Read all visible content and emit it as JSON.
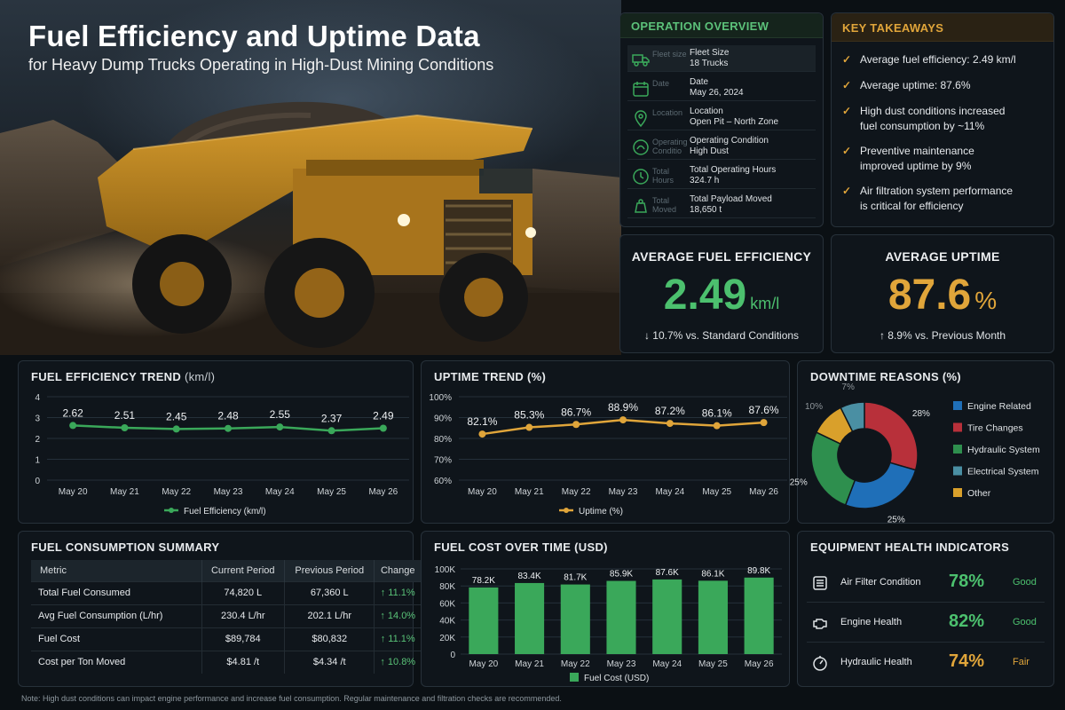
{
  "header": {
    "title": "Fuel Efficiency and Uptime Data",
    "subtitle": "for Heavy Dump Trucks Operating in High-Dust Mining Conditions"
  },
  "colors": {
    "green": "#3aa85a",
    "amber": "#e0a53a",
    "engine": "#1f6fb8",
    "tire": "#b8303a",
    "hydraulic": "#2e8f4e",
    "electrical": "#4a8fa3",
    "other": "#d9a02b"
  },
  "overview": {
    "title": "OPERATION OVERVIEW",
    "rows": [
      {
        "icon": "truck-icon",
        "faint": "Fleet size",
        "label": "Fleet Size",
        "value": "18 Trucks"
      },
      {
        "icon": "calendar-icon",
        "faint": "Date",
        "label": "Date",
        "value": "May 26, 2024"
      },
      {
        "icon": "location-pin-icon",
        "faint": "Location",
        "label": "Location",
        "value": "Open Pit – North Zone"
      },
      {
        "icon": "dust-gauge-icon",
        "faint": "Operating Conditio",
        "label": "Operating Condition",
        "value": "High Dust"
      },
      {
        "icon": "clock-icon",
        "faint": "Total Hours",
        "label": "Total Operating Hours",
        "value": "324.7 h"
      },
      {
        "icon": "weight-icon",
        "faint": "Total Moved",
        "label": "Total Payload Moved",
        "value": "18,650 t"
      }
    ]
  },
  "takeaways": {
    "title": "KEY TAKEAWAYS",
    "items": [
      {
        "lines": [
          "Average fuel efficiency: 2.49 km/l"
        ]
      },
      {
        "lines": [
          "Average uptime: 87.6%"
        ]
      },
      {
        "lines": [
          "High dust conditions increased",
          "fuel consumption by ~11%"
        ]
      },
      {
        "lines": [
          "Preventive maintenance",
          "improved uptime by 9%"
        ]
      },
      {
        "lines": [
          "Air filtration system performance",
          "is critical for efficiency"
        ]
      }
    ]
  },
  "kpis": {
    "fuel": {
      "title": "AVERAGE FUEL EFFICIENCY",
      "value": "2.49",
      "unit": "km/l",
      "sub": "↓ 10.7% vs. Standard Conditions"
    },
    "uptime": {
      "title": "AVERAGE UPTIME",
      "value": "87.6",
      "unit": "%",
      "sub": "↑ 8.9% vs. Previous Month"
    }
  },
  "chart_data": [
    {
      "type": "line",
      "title": "FUEL EFFICIENCY TREND",
      "title_unit": "(km/l)",
      "categories": [
        "May 20",
        "May 21",
        "May 22",
        "May 23",
        "May 24",
        "May 25",
        "May 26"
      ],
      "series": [
        {
          "name": "Fuel Efficiency (km/l)",
          "values": [
            2.62,
            2.51,
            2.45,
            2.48,
            2.55,
            2.37,
            2.49
          ]
        }
      ],
      "data_labels": [
        "2.62",
        "2.51",
        "2.45",
        "2.48",
        "2.55",
        "2.37",
        "2.49"
      ],
      "ylim": [
        0,
        4
      ],
      "yticks": [
        "0",
        "1",
        "2",
        "3",
        "4"
      ],
      "grid": true,
      "legend": "bottom"
    },
    {
      "type": "line",
      "title": "UPTIME TREND (%)",
      "categories": [
        "May 20",
        "May 21",
        "May 22",
        "May 23",
        "May 24",
        "May 25",
        "May 26"
      ],
      "series": [
        {
          "name": "Uptime (%)",
          "values": [
            82.1,
            85.3,
            86.7,
            88.9,
            87.2,
            86.1,
            87.6
          ]
        }
      ],
      "data_labels": [
        "82.1%",
        "85.3%",
        "86.7%",
        "88.9%",
        "87.2%",
        "86.1%",
        "87.6%"
      ],
      "ylim": [
        60,
        100
      ],
      "yticks": [
        "60%",
        "70%",
        "80%",
        "90%",
        "100%"
      ],
      "grid": true,
      "legend": "bottom"
    },
    {
      "type": "pie",
      "title": "DOWNTIME REASONS (%)",
      "categories": [
        "Engine Related",
        "Tire Changes",
        "Hydraulic System",
        "Electrical System",
        "Other"
      ],
      "values": [
        25,
        28,
        25,
        7,
        10
      ],
      "data_labels": [
        "25%",
        "28%",
        "25%",
        "7%",
        "10%"
      ],
      "legend": "right"
    },
    {
      "type": "bar",
      "title": "FUEL COST OVER TIME (USD)",
      "categories": [
        "May 20",
        "May 21",
        "May 22",
        "May 23",
        "May 24",
        "May 25",
        "May 26"
      ],
      "series": [
        {
          "name": "Fuel Cost (USD)",
          "values": [
            78200,
            83400,
            81700,
            85900,
            87600,
            86100,
            89800
          ]
        }
      ],
      "data_labels": [
        "78.2K",
        "83.4K",
        "81.7K",
        "85.9K",
        "87.6K",
        "86.1K",
        "89.8K"
      ],
      "ylim": [
        0,
        100000
      ],
      "yticks": [
        "0",
        "20K",
        "40K",
        "60K",
        "80K",
        "100K"
      ],
      "legend": "bottom"
    }
  ],
  "consumption": {
    "title": "FUEL CONSUMPTION SUMMARY",
    "headers": [
      "Metric",
      "Current Period",
      "Previous Period",
      "Change"
    ],
    "rows": [
      [
        "Total Fuel Consumed",
        "74,820 L",
        "67,360 L",
        "↑ 11.1%"
      ],
      [
        "Avg Fuel Consumption (L/hr)",
        "230.4 L/hr",
        "202.1 L/hr",
        "↑ 14.0%"
      ],
      [
        "Fuel Cost",
        "$89,784",
        "$80,832",
        "↑ 11.1%"
      ],
      [
        "Cost per Ton Moved",
        "$4.81 /t",
        "$4.34 /t",
        "↑ 10.8%"
      ]
    ]
  },
  "health": {
    "title": "EQUIPMENT HEALTH INDICATORS",
    "items": [
      {
        "icon": "air-filter-icon",
        "label": "Air Filter Condition",
        "value": "78%",
        "status": "Good",
        "tone": "good"
      },
      {
        "icon": "engine-icon",
        "label": "Engine Health",
        "value": "82%",
        "status": "Good",
        "tone": "good"
      },
      {
        "icon": "hydraulic-gauge-icon",
        "label": "Hydraulic Health",
        "value": "74%",
        "status": "Fair",
        "tone": "fair"
      }
    ]
  },
  "note": "Note: High dust conditions can impact engine performance and increase fuel consumption. Regular maintenance and filtration checks are recommended."
}
